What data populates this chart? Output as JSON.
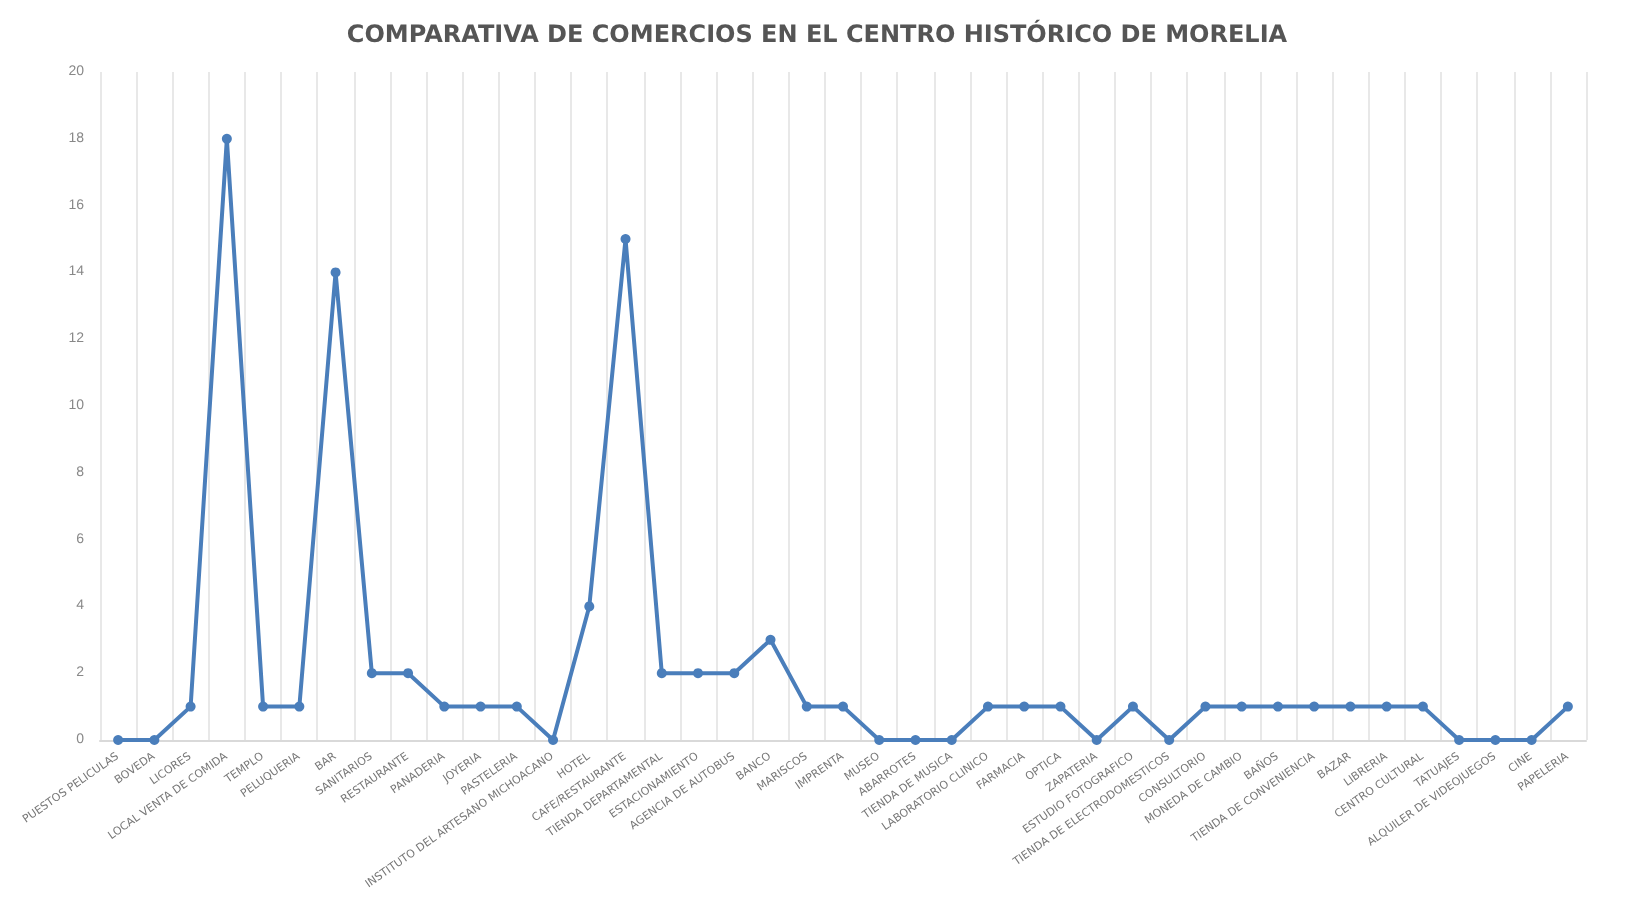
{
  "chart_data": {
    "type": "line",
    "title": "COMPARATIVA DE COMERCIOS EN EL CENTRO HISTÓRICO DE MORELIA",
    "categories": [
      "PUESTOS PELICULAS",
      "BOVEDA",
      "LICORES",
      "LOCAL VENTA DE COMIDA",
      "TEMPLO",
      "PELUQUERIA",
      "BAR",
      "SANITARIOS",
      "RESTAURANTE",
      "PANADERIA",
      "JOYERIA",
      "PASTELERIA",
      "INSTITUTO DEL ARTESANO MICHOACANO",
      "HOTEL",
      "CAFE/RESTAURANTE",
      "TIENDA DEPARTAMENTAL",
      "ESTACIONAMIENTO",
      "AGENCIA DE AUTOBUS",
      "BANCO",
      "MARISCOS",
      "IMPRENTA",
      "MUSEO",
      "ABARROTES",
      "TIENDA DE MUSICA",
      "LABORATORIO CLINICO",
      "FARMACIA",
      "OPTICA",
      "ZAPATERIA",
      "ESTUDIO FOTOGRAFICO",
      "TIENDA DE ELECTRODOMESTICOS",
      "CONSULTORIO",
      "MONEDA DE CAMBIO",
      "BAÑOS",
      "TIENDA DE CONVENIENCIA",
      "BAZAR",
      "LIBRERIA",
      "CENTRO CULTURAL",
      "TATUAJES",
      "ALQUILER DE VIDEOJUEGOS",
      "CINE",
      "PAPELERIA"
    ],
    "values": [
      0,
      0,
      1,
      18,
      1,
      1,
      14,
      2,
      2,
      1,
      1,
      1,
      0,
      4,
      15,
      2,
      2,
      2,
      3,
      1,
      1,
      0,
      0,
      0,
      1,
      1,
      1,
      0,
      1,
      0,
      1,
      1,
      1,
      1,
      1,
      1,
      1,
      0,
      0,
      0,
      1
    ],
    "color": "#4a7ebb",
    "ylim": [
      0,
      20
    ],
    "yticks": [
      0,
      2,
      4,
      6,
      8,
      10,
      12,
      14,
      16,
      18,
      20
    ],
    "grid": "x",
    "marker": "circle",
    "line_style": "solid"
  }
}
